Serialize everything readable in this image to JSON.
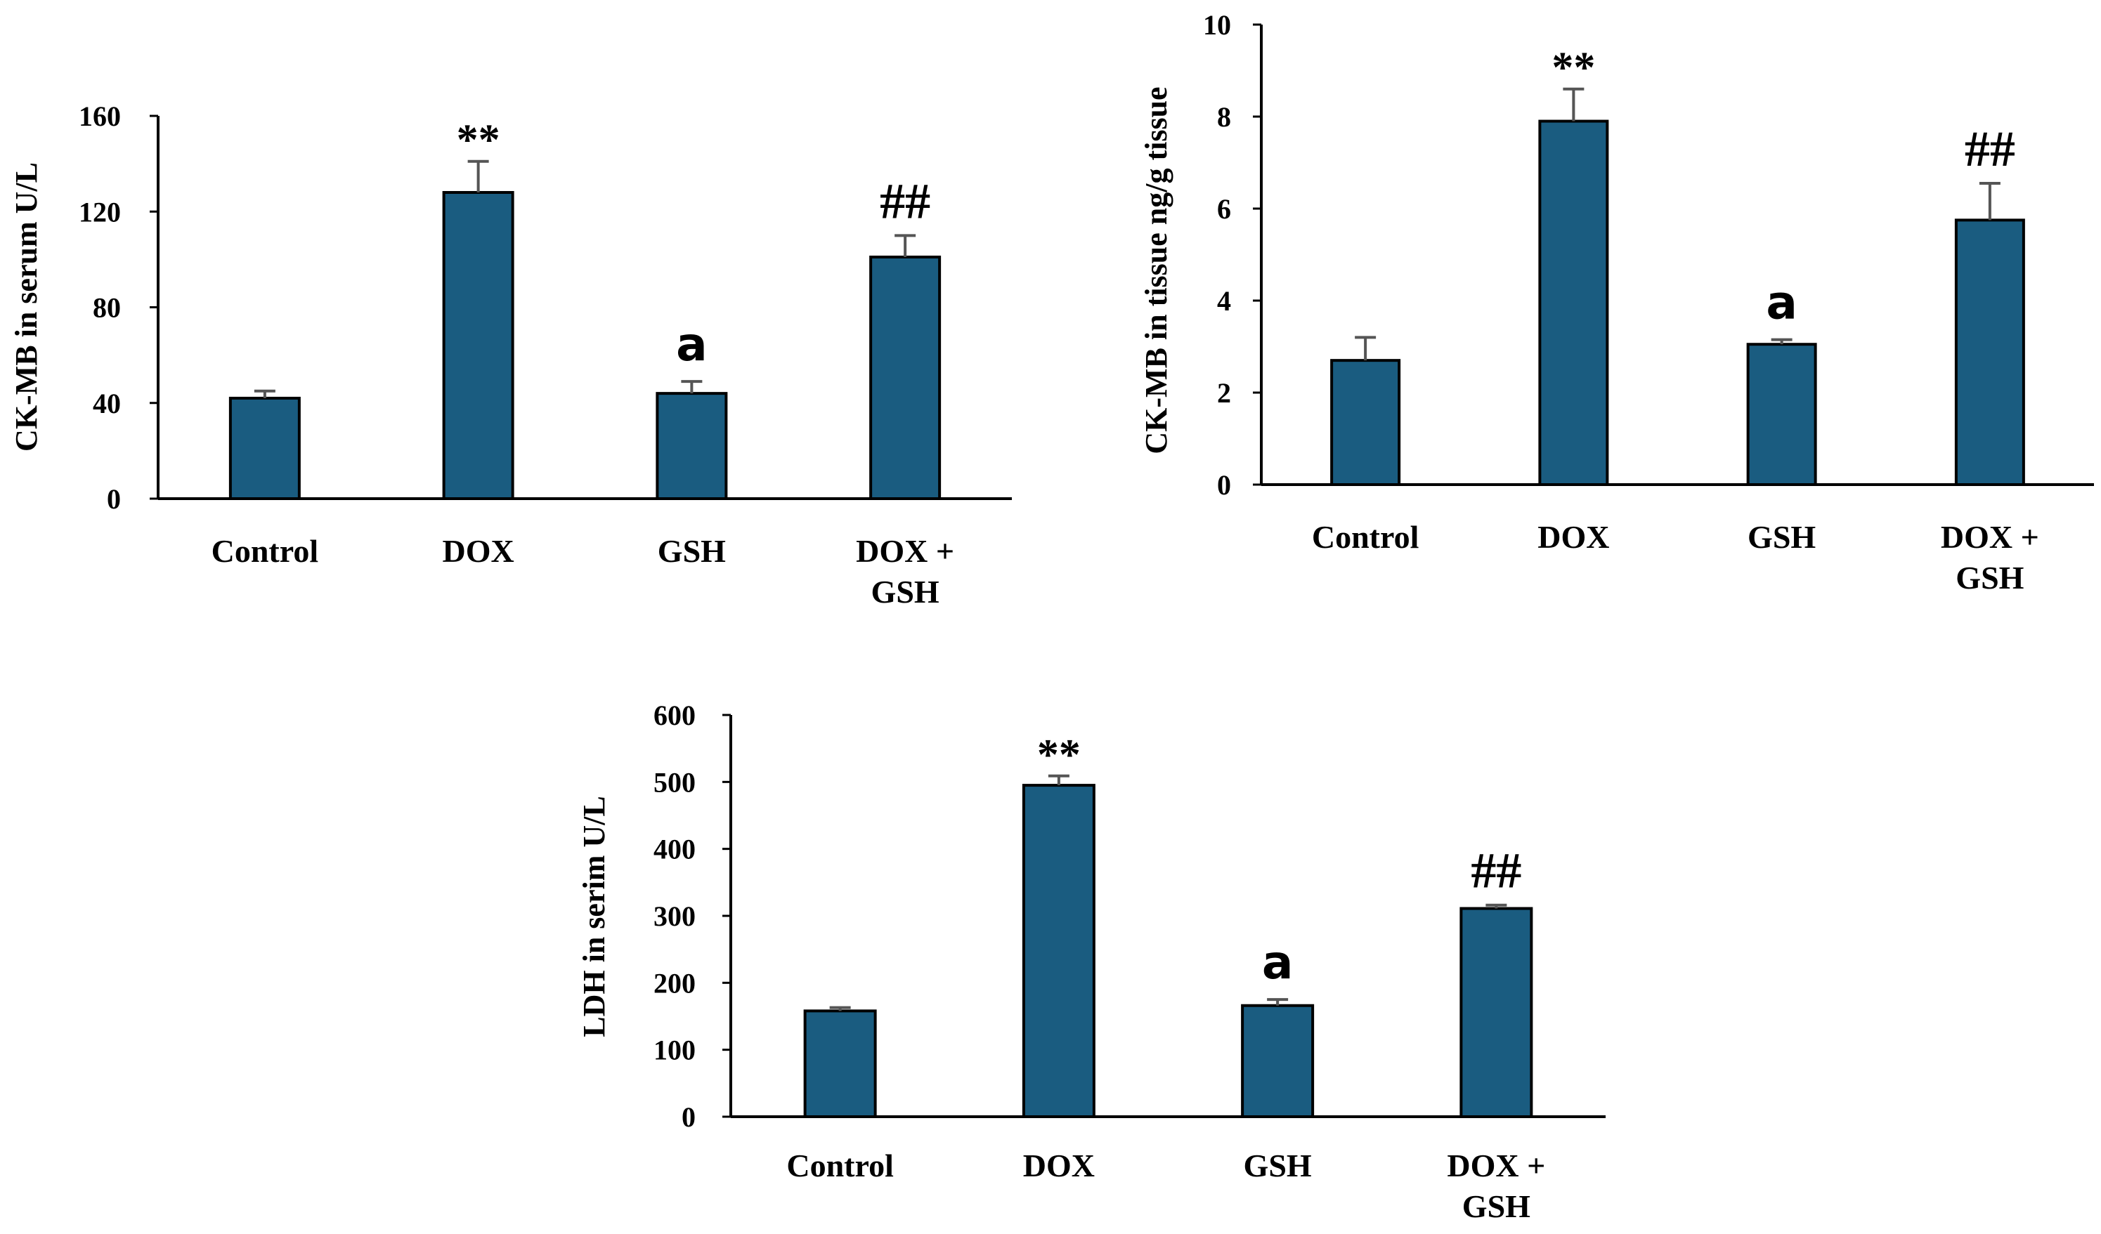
{
  "chart_data": [
    {
      "type": "bar",
      "title": "",
      "xlabel": "",
      "ylabel": "CK-MB in serum U/L",
      "ylim": [
        0,
        160
      ],
      "yticks": [
        0,
        40,
        80,
        120,
        160
      ],
      "grid": false,
      "categories": [
        "Control",
        "DOX",
        "GSH",
        "DOX + GSH"
      ],
      "category_lines": [
        [
          "Control"
        ],
        [
          "DOX"
        ],
        [
          "GSH"
        ],
        [
          "DOX +",
          "GSH"
        ]
      ],
      "values": [
        42,
        128,
        44,
        101
      ],
      "errors": [
        3,
        13,
        5,
        9
      ],
      "annotations": [
        "",
        "**",
        "a",
        "##"
      ],
      "bar_color": "#1a5c80"
    },
    {
      "type": "bar",
      "title": "",
      "xlabel": "",
      "ylabel": "CK-MB in tissue ng/g tissue",
      "ylim": [
        0,
        10
      ],
      "yticks": [
        0,
        2,
        4,
        6,
        8,
        10
      ],
      "grid": false,
      "categories": [
        "Control",
        "DOX",
        "GSH",
        "DOX + GSH"
      ],
      "category_lines": [
        [
          "Control"
        ],
        [
          "DOX"
        ],
        [
          "GSH"
        ],
        [
          "DOX +",
          "GSH"
        ]
      ],
      "values": [
        2.7,
        7.9,
        3.05,
        5.75
      ],
      "errors": [
        0.5,
        0.7,
        0.1,
        0.8
      ],
      "annotations": [
        "",
        "**",
        "a",
        "##"
      ],
      "bar_color": "#1a5c80"
    },
    {
      "type": "bar",
      "title": "",
      "xlabel": "",
      "ylabel": "LDH in serim U/L",
      "ylim": [
        0,
        600
      ],
      "yticks": [
        0,
        100,
        200,
        300,
        400,
        500,
        600
      ],
      "grid": false,
      "categories": [
        "Control",
        "DOX",
        "GSH",
        "DOX + GSH"
      ],
      "category_lines": [
        [
          "Control"
        ],
        [
          "DOX"
        ],
        [
          "GSH"
        ],
        [
          "DOX +",
          "GSH"
        ]
      ],
      "values": [
        158,
        495,
        166,
        311
      ],
      "errors": [
        5,
        14,
        9,
        5
      ],
      "annotations": [
        "",
        "**",
        "a",
        "##"
      ],
      "bar_color": "#1a5c80"
    }
  ]
}
